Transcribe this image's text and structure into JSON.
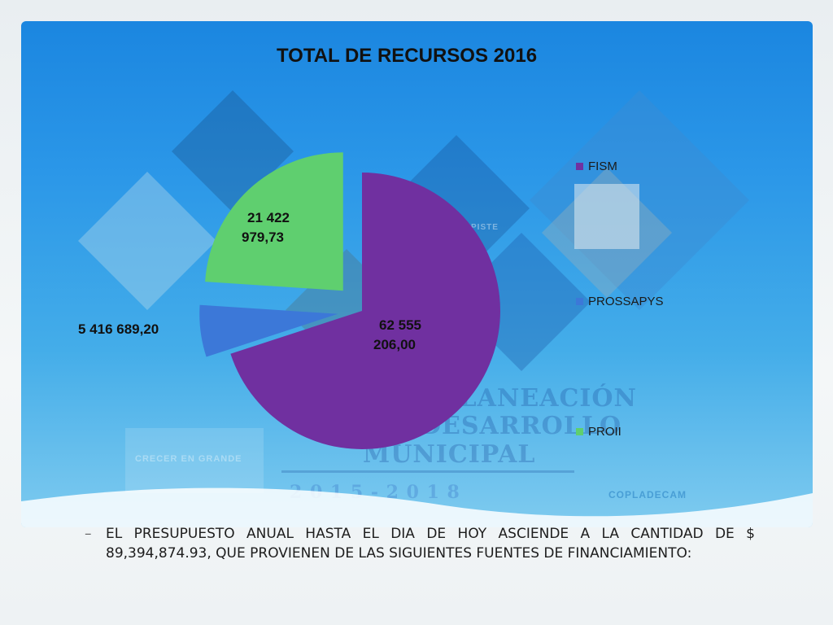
{
  "chart_data": {
    "type": "pie",
    "title": "TOTAL DE RECURSOS 2016",
    "categories": [
      "FISM",
      "PROSSAPYS",
      "PROII"
    ],
    "values": [
      62555206.0,
      5416689.2,
      21422979.73
    ],
    "value_labels": [
      "62 555 206,00",
      "5 416 689,20",
      "21 422 979,73"
    ],
    "value_label_lines": [
      [
        "62 555",
        "206,00"
      ],
      [
        "5 416 689,20"
      ],
      [
        "21 422",
        "979,73"
      ]
    ],
    "colors": [
      "#7030a0",
      "#3c78d8",
      "#5fcf6f"
    ],
    "exploded": true,
    "legend_position": "right"
  },
  "bullet": {
    "marker": "–",
    "text": "EL PRESUPUESTO ANUAL HASTA EL DIA DE HOY ASCIENDE A LA CANTIDAD DE $ 89,394,874.93, QUE PROVIENEN DE LAS SIGUIENTES FUENTES DE FINANCIAMIENTO:"
  },
  "background": {
    "watermark_lines": [
      "PLANEACIÓN",
      "DESARROLLO",
      "MUNICIPAL"
    ],
    "watermark_years": "2 0 1 5  -  2 0 1 8",
    "watermark_small": "CRECER EN GRANDE",
    "watermark_badge": "COPLADECAM",
    "watermark_place": "PISTE"
  }
}
